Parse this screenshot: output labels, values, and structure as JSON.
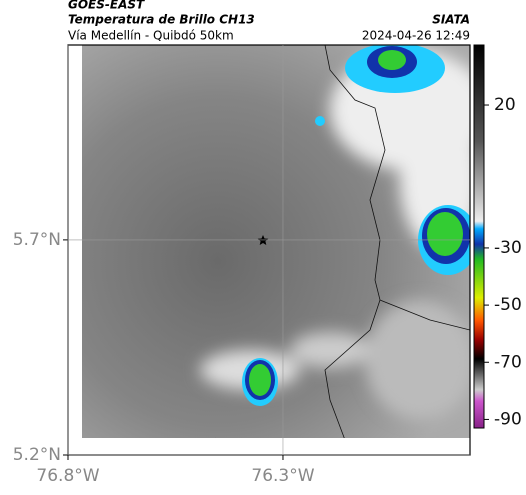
{
  "header": {
    "satellite": "GOES-EAST",
    "product": "Temperatura de Brillo CH13",
    "route": "Vía Medellín - Quibdó 50km",
    "source": "SIATA",
    "datetime": "2024-04-26 12:49"
  },
  "map": {
    "latlim": [
      5.2,
      6.153
    ],
    "lonlim": [
      -76.8,
      -75.865
    ],
    "lat_ticks": [
      {
        "value": 5.7,
        "label": "5.7°N"
      },
      {
        "value": 5.2,
        "label": "5.2°N"
      }
    ],
    "lon_ticks": [
      {
        "value": -76.8,
        "label": "76.8°W"
      },
      {
        "value": -76.3,
        "label": "76.3°W"
      }
    ]
  },
  "colorbar": {
    "range": [
      -93,
      41
    ],
    "ticks": [
      20,
      -30,
      -50,
      -70,
      -90
    ]
  }
}
